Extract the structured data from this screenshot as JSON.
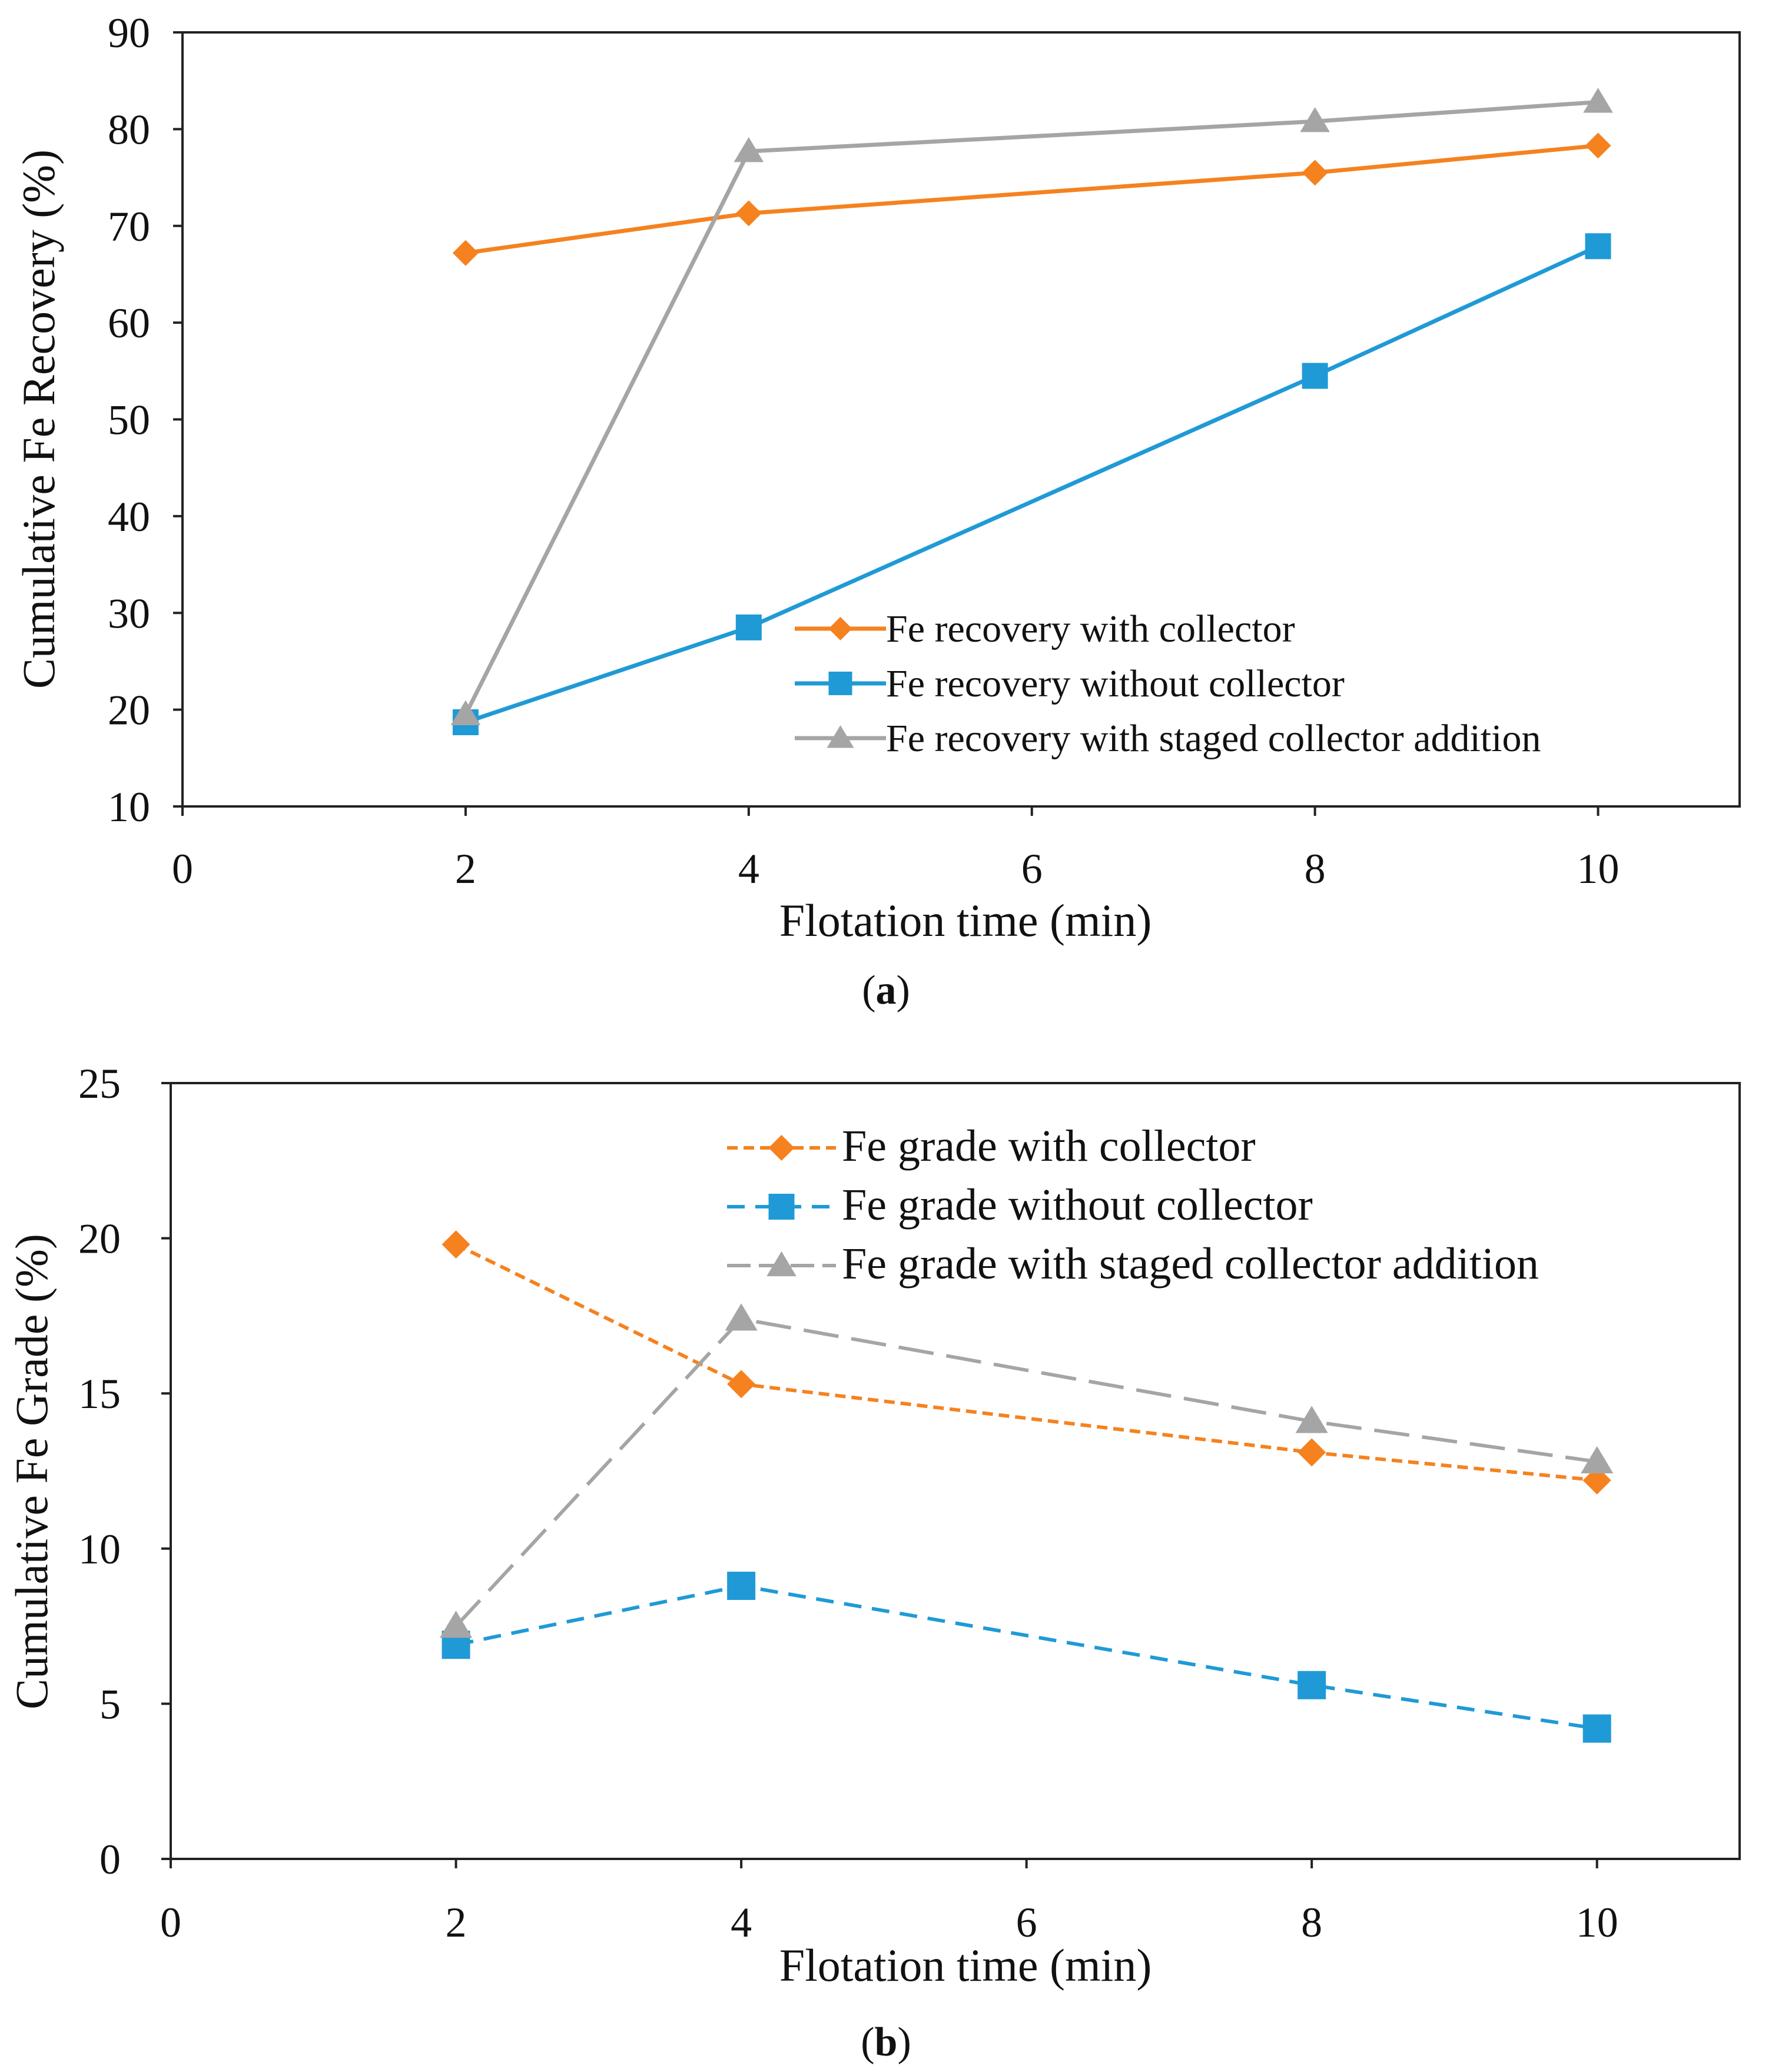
{
  "chart_data": [
    {
      "panel_label_text": "a",
      "type": "line",
      "title": "",
      "xlabel": "Flotation time (min)",
      "ylabel": "Cumulative Fe Recovery (%)",
      "xlim": [
        0,
        11
      ],
      "ylim": [
        10,
        90
      ],
      "xticks": [
        0,
        2,
        4,
        6,
        8,
        10
      ],
      "yticks": [
        10,
        20,
        30,
        40,
        50,
        60,
        70,
        80,
        90
      ],
      "grid": false,
      "legend_position": "bottom-right",
      "series": [
        {
          "name": "Fe recovery with collector",
          "color": "#F5821F",
          "marker": "diamond",
          "dash": "solid",
          "x": [
            2,
            4,
            8,
            10
          ],
          "y": [
            67.2,
            71.3,
            75.5,
            78.3
          ]
        },
        {
          "name": "Fe recovery without collector",
          "color": "#1F9AD6",
          "marker": "square",
          "dash": "solid",
          "x": [
            2,
            4,
            8,
            10
          ],
          "y": [
            18.7,
            28.5,
            54.5,
            67.9
          ]
        },
        {
          "name": "Fe recovery with staged collector addition",
          "color": "#A5A5A5",
          "marker": "triangle",
          "dash": "solid",
          "x": [
            2,
            4,
            8,
            10
          ],
          "y": [
            19.5,
            77.7,
            80.8,
            82.8
          ]
        }
      ]
    },
    {
      "panel_label_text": "b",
      "type": "line",
      "title": "",
      "xlabel": "Flotation time (min)",
      "ylabel": "Cumulative Fe Grade (%)",
      "xlim": [
        0,
        11
      ],
      "ylim": [
        0,
        25
      ],
      "xticks": [
        0,
        2,
        4,
        6,
        8,
        10
      ],
      "yticks": [
        0,
        5,
        10,
        15,
        20,
        25
      ],
      "grid": false,
      "legend_position": "top-right",
      "series": [
        {
          "name": "Fe grade with collector",
          "color": "#F5821F",
          "marker": "diamond",
          "dash": "short-dash",
          "x": [
            2,
            4,
            8,
            10
          ],
          "y": [
            19.8,
            15.3,
            13.1,
            12.2
          ]
        },
        {
          "name": "Fe grade without collector",
          "color": "#1F9AD6",
          "marker": "square",
          "dash": "dash",
          "x": [
            2,
            4,
            8,
            10
          ],
          "y": [
            6.9,
            8.8,
            5.6,
            4.2
          ]
        },
        {
          "name": "Fe grade with staged collector addition",
          "color": "#A5A5A5",
          "marker": "triangle",
          "dash": "long-dash",
          "x": [
            2,
            4,
            8,
            10
          ],
          "y": [
            7.5,
            17.4,
            14.1,
            12.8
          ]
        }
      ]
    }
  ]
}
